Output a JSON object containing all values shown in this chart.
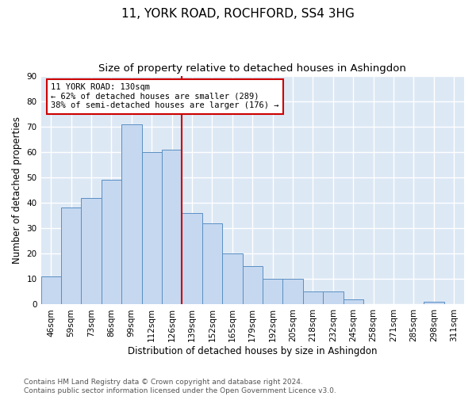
{
  "title": "11, YORK ROAD, ROCHFORD, SS4 3HG",
  "subtitle": "Size of property relative to detached houses in Ashingdon",
  "xlabel": "Distribution of detached houses by size in Ashingdon",
  "ylabel": "Number of detached properties",
  "categories": [
    "46sqm",
    "59sqm",
    "73sqm",
    "86sqm",
    "99sqm",
    "112sqm",
    "126sqm",
    "139sqm",
    "152sqm",
    "165sqm",
    "179sqm",
    "192sqm",
    "205sqm",
    "218sqm",
    "232sqm",
    "245sqm",
    "258sqm",
    "271sqm",
    "285sqm",
    "298sqm",
    "311sqm"
  ],
  "values": [
    11,
    38,
    42,
    49,
    71,
    60,
    61,
    36,
    32,
    20,
    15,
    10,
    10,
    5,
    5,
    2,
    0,
    0,
    0,
    1,
    0
  ],
  "bar_color": "#c5d8f0",
  "bar_edge_color": "#5a8fc3",
  "background_color": "#dde8f5",
  "grid_color": "#ffffff",
  "annotation_text_line1": "11 YORK ROAD: 130sqm",
  "annotation_text_line2": "← 62% of detached houses are smaller (289)",
  "annotation_text_line3": "38% of semi-detached houses are larger (176) →",
  "annotation_box_color": "#ffffff",
  "annotation_box_edge_color": "#cc0000",
  "vline_color": "#cc0000",
  "vline_x": 6.5,
  "ylim": [
    0,
    90
  ],
  "yticks": [
    0,
    10,
    20,
    30,
    40,
    50,
    60,
    70,
    80,
    90
  ],
  "footnote_line1": "Contains HM Land Registry data © Crown copyright and database right 2024.",
  "footnote_line2": "Contains public sector information licensed under the Open Government Licence v3.0.",
  "title_fontsize": 11,
  "subtitle_fontsize": 9.5,
  "xlabel_fontsize": 8.5,
  "ylabel_fontsize": 8.5,
  "tick_fontsize": 7.5,
  "annotation_fontsize": 7.5,
  "footnote_fontsize": 6.5
}
